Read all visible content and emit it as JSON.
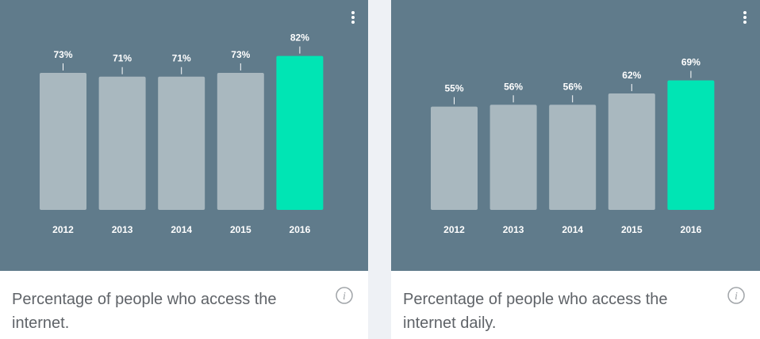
{
  "theme": {
    "plot_bg": "#607b8b",
    "bar_color": "#a9b8bf",
    "highlight_color": "#00e5b4",
    "caption_color": "#5f6368"
  },
  "cards": [
    {
      "caption": "Percentage of people who access the internet.",
      "menu_icon": "more-vertical-icon",
      "info_icon": "info-icon",
      "info_glyph": "i"
    },
    {
      "caption": "Percentage of people who access the internet daily.",
      "menu_icon": "more-vertical-icon",
      "info_icon": "info-icon",
      "info_glyph": "i"
    }
  ],
  "chart_data": [
    {
      "type": "bar",
      "title": "",
      "categories": [
        "2012",
        "2013",
        "2014",
        "2015",
        "2016"
      ],
      "values": [
        73,
        71,
        71,
        73,
        82
      ],
      "data_labels": [
        "73%",
        "71%",
        "71%",
        "73%",
        "82%"
      ],
      "highlight_index": 4,
      "unit": "%",
      "xlabel": "",
      "ylabel": "",
      "ylim": [
        0,
        100
      ],
      "grid": false,
      "legend": "none"
    },
    {
      "type": "bar",
      "title": "",
      "categories": [
        "2012",
        "2013",
        "2014",
        "2015",
        "2016"
      ],
      "values": [
        55,
        56,
        56,
        62,
        69
      ],
      "data_labels": [
        "55%",
        "56%",
        "56%",
        "62%",
        "69%"
      ],
      "highlight_index": 4,
      "unit": "%",
      "xlabel": "",
      "ylabel": "",
      "ylim": [
        0,
        100
      ],
      "grid": false,
      "legend": "none"
    }
  ]
}
